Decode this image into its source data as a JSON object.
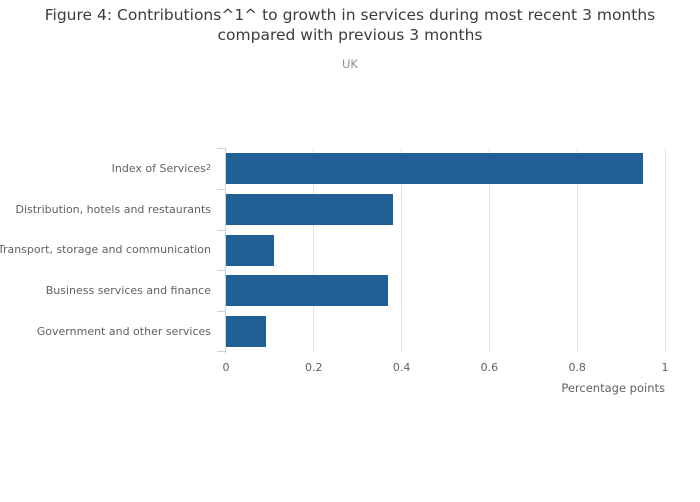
{
  "chart_data": {
    "type": "bar",
    "orientation": "horizontal",
    "title": "Figure 4: Contributions^1^ to growth in services during most recent 3 months compared with previous 3 months",
    "subtitle": "UK",
    "categories": [
      {
        "label": "Index of Services",
        "sup": "2"
      },
      {
        "label": "Distribution, hotels and restaurants",
        "sup": ""
      },
      {
        "label": "Transport, storage and communication",
        "sup": ""
      },
      {
        "label": "Business services and finance",
        "sup": ""
      },
      {
        "label": "Government and other services",
        "sup": ""
      }
    ],
    "values": [
      0.95,
      0.38,
      0.11,
      0.37,
      0.09
    ],
    "xlabel": "Percentage points",
    "xlim": [
      0,
      1
    ],
    "xticks": [
      "0",
      "0.2",
      "0.4",
      "0.6",
      "0.8",
      "1"
    ],
    "xtick_values": [
      0,
      0.2,
      0.4,
      0.6,
      0.8,
      1
    ],
    "grid": true,
    "legend": "none",
    "colors": {
      "bar": "#206095",
      "axis_line": "#c9d6df",
      "gridline": "#e5e5e5",
      "title": "#3c3c3c",
      "subtitle": "#8e8e8e",
      "label": "#616161"
    }
  }
}
